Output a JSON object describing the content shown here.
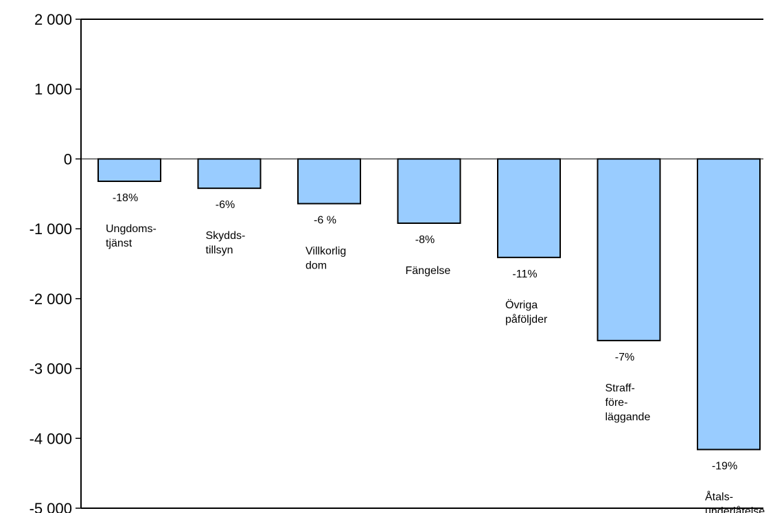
{
  "chart_data": {
    "type": "bar",
    "title": "",
    "xlabel": "",
    "ylabel": "",
    "ylim": [
      -5000,
      2000
    ],
    "yticks": [
      "2 000",
      "1 000",
      "0",
      "-1 000",
      "-2 000",
      "-3 000",
      "-4 000",
      "-5 000"
    ],
    "ytick_values": [
      2000,
      1000,
      0,
      -1000,
      -2000,
      -3000,
      -4000,
      -5000
    ],
    "bar_color": "#99CCFF",
    "grid": false,
    "legend": "none",
    "categories": [
      [
        "Ungdoms-",
        "tjänst"
      ],
      [
        "Skydds-",
        "tillsyn"
      ],
      [
        "Villkorlig",
        "dom"
      ],
      [
        "Fängelse"
      ],
      [
        "Övriga",
        "påföljder"
      ],
      [
        "Straff-",
        "före-",
        "läggande"
      ],
      [
        "Åtals-",
        "underlåtelse"
      ]
    ],
    "values": [
      -320,
      -420,
      -640,
      -920,
      -1410,
      -2600,
      -4160
    ],
    "data_labels": [
      "-18%",
      "-6%",
      "-6 %",
      "-8%",
      "-11%",
      "-7%",
      "-19%"
    ]
  }
}
